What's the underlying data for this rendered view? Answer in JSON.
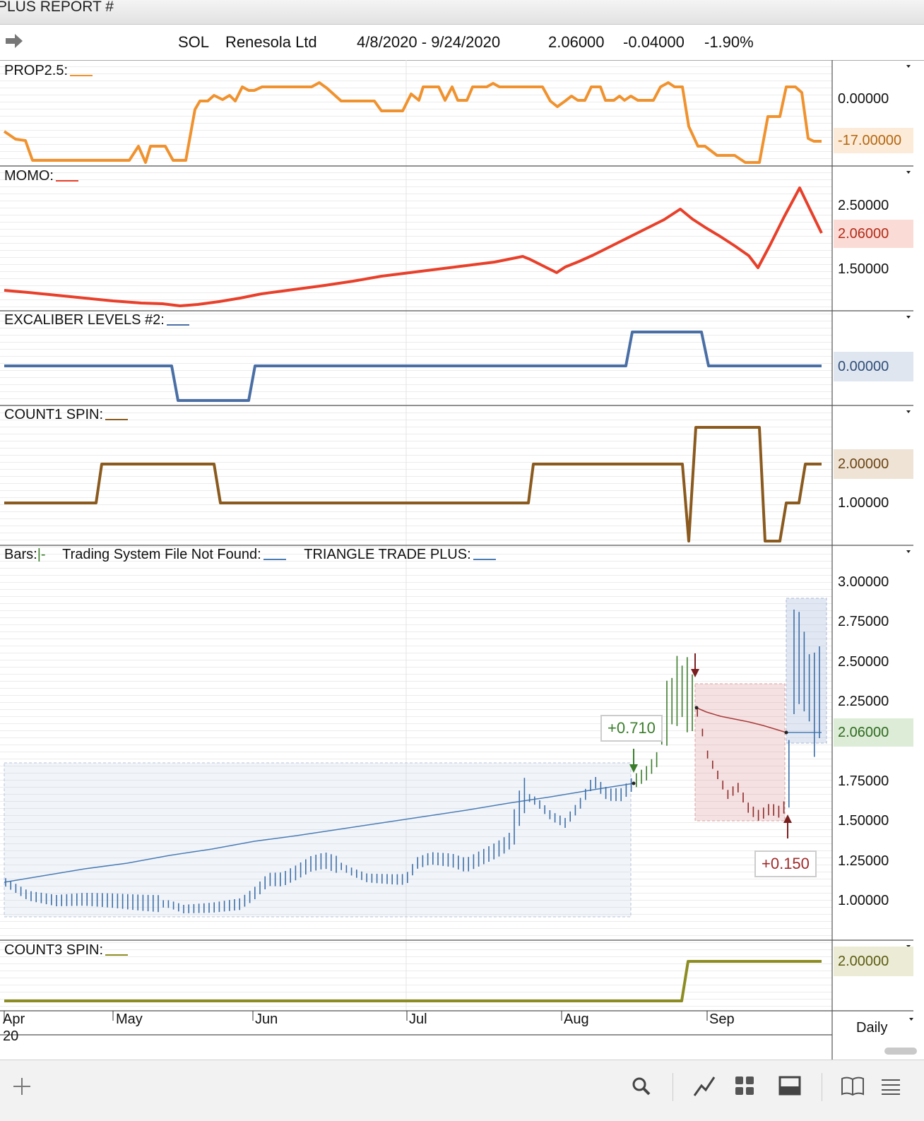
{
  "window": {
    "title": "PLUS REPORT #"
  },
  "header": {
    "symbol": "SOL",
    "company": "Renesola Ltd",
    "date_range": "4/8/2020 - 9/24/2020",
    "last": "2.06000",
    "change": "-0.04000",
    "change_pct": "-1.90%"
  },
  "panels": {
    "prop": {
      "label": "PROP2.5:",
      "color": "#f0922e",
      "ticks": [
        "0.00000"
      ],
      "badge": "-17.00000",
      "badge_bg": "#fcebd8",
      "badge_fg": "#b3660f"
    },
    "momo": {
      "label": "MOMO:",
      "color": "#e8402a",
      "ticks": [
        "2.50000",
        "1.50000"
      ],
      "badge": "2.06000",
      "badge_bg": "#fadbd6",
      "badge_fg": "#b32b17"
    },
    "excal": {
      "label": "EXCALIBER LEVELS #2:",
      "color": "#4a6fa5",
      "badge": "0.00000",
      "badge_bg": "#dfe6ef",
      "badge_fg": "#2e4e7a"
    },
    "count1": {
      "label": "COUNT1 SPIN:",
      "color": "#8a5a1e",
      "ticks": [
        "1.00000"
      ],
      "badge": "2.00000",
      "badge_bg": "#efe3d6",
      "badge_fg": "#6b4413"
    },
    "bars": {
      "label_bars": "Bars:",
      "label_bars_mark": "|-",
      "label_tsf": "Trading System File Not Found:",
      "label_ttp": "TRIANGLE TRADE PLUS:",
      "ticks": [
        "3.00000",
        "2.75000",
        "2.50000",
        "2.25000",
        "1.75000",
        "1.50000",
        "1.25000",
        "1.00000"
      ],
      "badge": "2.06000",
      "badge_bg": "#dcecd6",
      "badge_fg": "#2e6b1f",
      "trade1": "+0.710",
      "trade2": "+0.150"
    },
    "count3": {
      "label": "COUNT3 SPIN:",
      "color": "#8c8c22",
      "badge": "2.00000",
      "badge_bg": "#ececd6",
      "badge_fg": "#5b5b12"
    }
  },
  "xaxis": {
    "months": [
      "Apr",
      "May",
      "Jun",
      "Jul",
      "Aug",
      "Sep"
    ],
    "year": "20",
    "period": "Daily"
  },
  "toolbar": {
    "icons": [
      "add-icon",
      "search-icon",
      "draw-line-icon",
      "grid-layout-icon",
      "panel-layout-icon",
      "book-icon",
      "menu-icon"
    ]
  }
}
